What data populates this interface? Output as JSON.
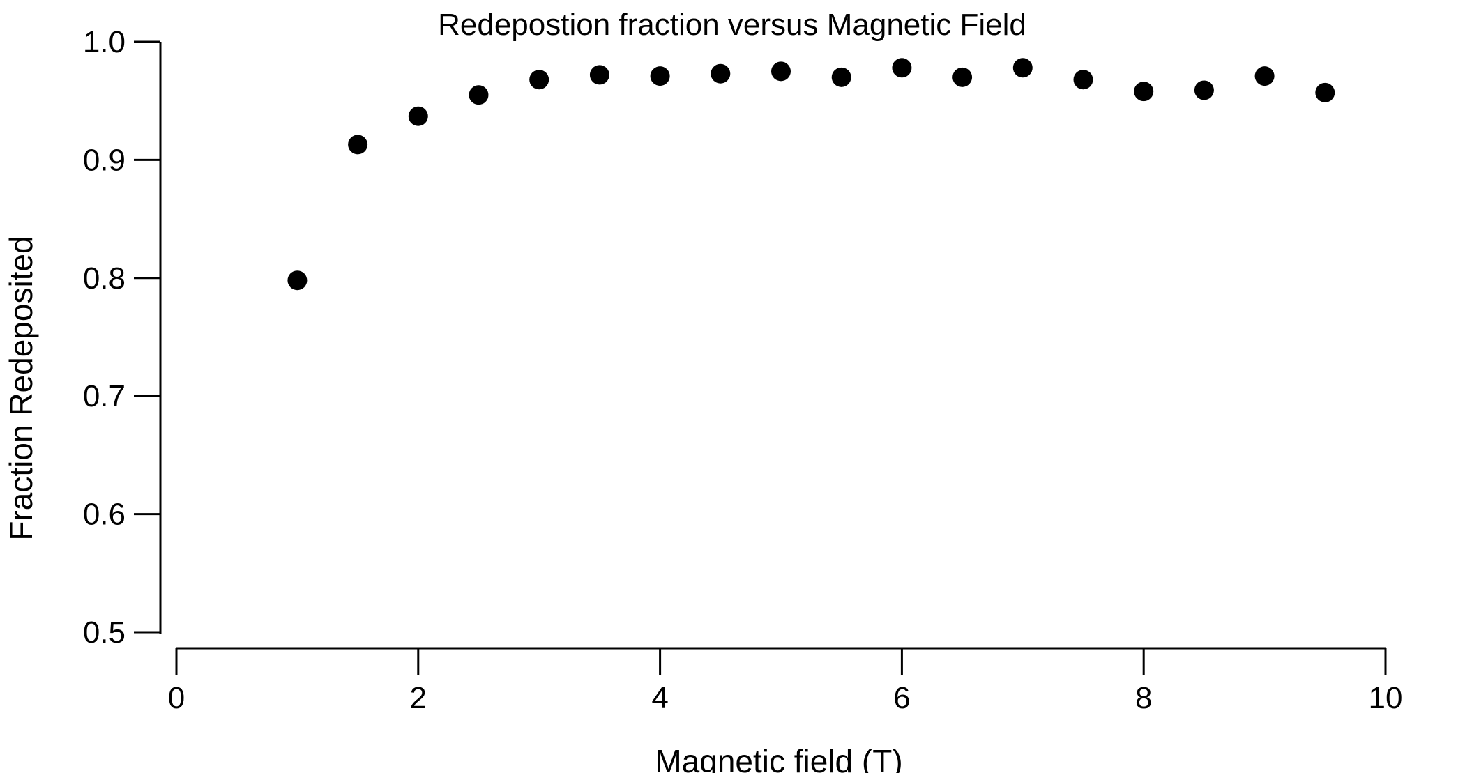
{
  "chart_data": {
    "type": "scatter",
    "title": "Redepostion fraction versus Magnetic Field",
    "xlabel": "Magnetic field (T)",
    "ylabel": "Fraction Redeposited",
    "xlim": [
      0,
      10
    ],
    "ylim": [
      0.5,
      1.0
    ],
    "x_ticks": [
      "0",
      "2",
      "4",
      "6",
      "8",
      "10"
    ],
    "y_ticks": [
      "0.5",
      "0.6",
      "0.7",
      "0.8",
      "0.9",
      "1.0"
    ],
    "grid": false,
    "legend": "none",
    "marker_color": "#000000",
    "series": [
      {
        "x": [
          1.0,
          1.5,
          2.0,
          2.5,
          3.0,
          3.5,
          4.0,
          4.5,
          5.0,
          5.5,
          6.0,
          6.5,
          7.0,
          7.5,
          8.0,
          8.5,
          9.0,
          9.5
        ],
        "y": [
          0.798,
          0.913,
          0.937,
          0.955,
          0.968,
          0.972,
          0.971,
          0.973,
          0.975,
          0.97,
          0.978,
          0.97,
          0.978,
          0.968,
          0.958,
          0.959,
          0.971,
          0.957
        ]
      }
    ]
  }
}
